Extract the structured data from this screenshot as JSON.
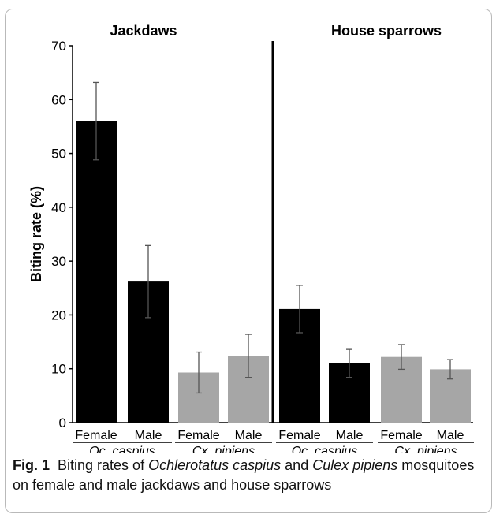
{
  "chart_data": {
    "type": "bar",
    "ylabel": "Biting rate (%)",
    "ylim": [
      0,
      70
    ],
    "yticks": [
      0,
      10,
      20,
      30,
      40,
      50,
      60,
      70
    ],
    "panels": [
      {
        "title": "Jackdaws",
        "bars": [
          {
            "sex": "Female",
            "species": "Oc. caspius",
            "value": 56,
            "error": 7.2,
            "color": "#000000"
          },
          {
            "sex": "Male",
            "species": "Oc. caspius",
            "value": 26.2,
            "error": 6.7,
            "color": "#000000"
          },
          {
            "sex": "Female",
            "species": "Cx. pipiens",
            "value": 9.3,
            "error": 3.8,
            "color": "#a6a6a6"
          },
          {
            "sex": "Male",
            "species": "Cx. pipiens",
            "value": 12.4,
            "error": 4.0,
            "color": "#a6a6a6"
          }
        ]
      },
      {
        "title": "House sparrows",
        "bars": [
          {
            "sex": "Female",
            "species": "Oc. caspius",
            "value": 21.1,
            "error": 4.4,
            "color": "#000000"
          },
          {
            "sex": "Male",
            "species": "Oc. caspius",
            "value": 11,
            "error": 2.6,
            "color": "#000000"
          },
          {
            "sex": "Female",
            "species": "Cx. pipiens",
            "value": 12.2,
            "error": 2.3,
            "color": "#a6a6a6"
          },
          {
            "sex": "Male",
            "species": "Cx. pipiens",
            "value": 9.9,
            "error": 1.8,
            "color": "#a6a6a6"
          }
        ]
      }
    ],
    "grid": false
  },
  "caption": {
    "label": "Fig. 1",
    "text_1": "Biting rates of ",
    "species_1": "Ochlerotatus caspius",
    "text_2": " and ",
    "species_2": "Culex pipiens",
    "text_3": " mosquitoes on female and male jackdaws and house sparrows"
  }
}
